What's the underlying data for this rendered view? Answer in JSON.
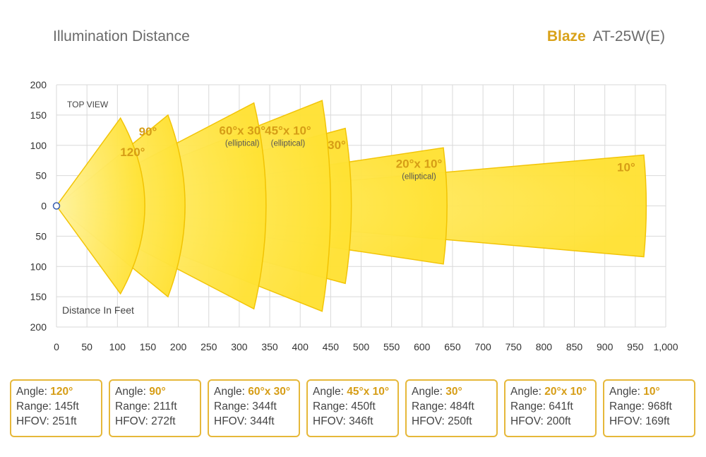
{
  "header": {
    "title": "Illumination Distance",
    "brand": "Blaze",
    "model": "AT-25W(E)"
  },
  "colors": {
    "beam_fill": "#ffe234",
    "beam_stroke": "#f2c300",
    "accent": "#d69d16",
    "grid": "#d9d9d9",
    "card_border": "#e6b83a"
  },
  "chart_data": {
    "type": "area",
    "view_label": "TOP VIEW",
    "axis_label": "Distance In Feet",
    "xlim": [
      0,
      1000
    ],
    "ylim": [
      -200,
      200
    ],
    "x_ticks": [
      "0",
      "50",
      "100",
      "150",
      "200",
      "250",
      "300",
      "350",
      "400",
      "450",
      "500",
      "550",
      "600",
      "650",
      "700",
      "750",
      "800",
      "850",
      "900",
      "950",
      "1,000"
    ],
    "y_ticks": [
      "200",
      "150",
      "100",
      "50",
      "0",
      "50",
      "100",
      "150",
      "200"
    ],
    "grid": true,
    "beams": [
      {
        "angle": "120°",
        "range_ft": 145,
        "note": ""
      },
      {
        "angle": "90°",
        "range_ft": 211,
        "note": ""
      },
      {
        "angle": "60°x 30°",
        "range_ft": 344,
        "note": "(elliptical)"
      },
      {
        "angle": "45°x 10°",
        "range_ft": 450,
        "note": "(elliptical)"
      },
      {
        "angle": "30°",
        "range_ft": 484,
        "note": ""
      },
      {
        "angle": "20°x 10°",
        "range_ft": 641,
        "note": "(elliptical)"
      },
      {
        "angle": "10°",
        "range_ft": 968,
        "note": ""
      }
    ]
  },
  "cards": [
    {
      "angle_label": "Angle:",
      "angle": "120°",
      "range_label": "Range:",
      "range": "145ft",
      "hfov_label": "HFOV:",
      "hfov": "251ft"
    },
    {
      "angle_label": "Angle:",
      "angle": "90°",
      "range_label": "Range:",
      "range": "211ft",
      "hfov_label": "HFOV:",
      "hfov": "272ft"
    },
    {
      "angle_label": "Angle:",
      "angle": "60°x 30°",
      "range_label": "Range:",
      "range": "344ft",
      "hfov_label": "HFOV:",
      "hfov": "344ft"
    },
    {
      "angle_label": "Angle:",
      "angle": "45°x 10°",
      "range_label": "Range:",
      "range": "450ft",
      "hfov_label": "HFOV:",
      "hfov": "346ft"
    },
    {
      "angle_label": "Angle:",
      "angle": "30°",
      "range_label": "Range:",
      "range": "484ft",
      "hfov_label": "HFOV:",
      "hfov": "250ft"
    },
    {
      "angle_label": "Angle:",
      "angle": "20°x 10°",
      "range_label": "Range:",
      "range": "641ft",
      "hfov_label": "HFOV:",
      "hfov": "200ft"
    },
    {
      "angle_label": "Angle:",
      "angle": "10°",
      "range_label": "Range:",
      "range": "968ft",
      "hfov_label": "HFOV:",
      "hfov": "169ft"
    }
  ]
}
